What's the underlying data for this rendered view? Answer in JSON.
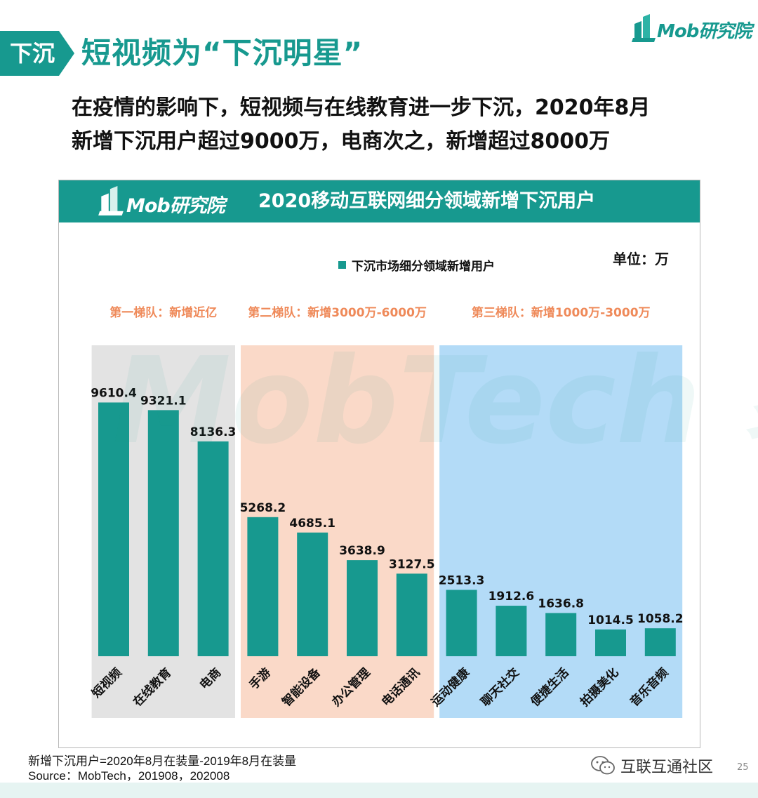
{
  "header": {
    "tag": "下沉",
    "title": "短视频为“下沉明星”",
    "brand": "Mob研究院"
  },
  "subtitle": {
    "line1": "在疫情的影响下，短视频与在线教育进一步下沉，2020年8月",
    "line2": "新增下沉用户超过9000万，电商次之，新增超过8000万"
  },
  "chart": {
    "brand": "Mob研究院",
    "title": "2020移动互联网细分领域新增下沉用户",
    "unit": "单位：万",
    "legend": "下沉市场细分领域新增用户"
  },
  "watermark": {
    "text": "MobTech 袤博"
  },
  "chart_data": {
    "type": "bar",
    "categories": [
      "短视频",
      "在线教育",
      "电商",
      "手游",
      "智能设备",
      "办公管理",
      "电话通讯",
      "运动健康",
      "聊天社交",
      "便捷生活",
      "拍摄美化",
      "音乐音频"
    ],
    "series": [
      {
        "name": "下沉市场细分领域新增用户",
        "values": [
          9610.4,
          9321.1,
          8136.3,
          5268.2,
          4685.1,
          3638.9,
          3127.5,
          2513.3,
          1912.6,
          1636.8,
          1014.5,
          1058.2
        ]
      }
    ],
    "value_labels": [
      "9610.4",
      "9321.1",
      "8136.3",
      "5268.2",
      "4685.1",
      "3638.9",
      "3127.5",
      "2513.3",
      "1912.6",
      "1636.8",
      "1014.5",
      "1058.2"
    ],
    "groups": [
      {
        "label": "第一梯队：新增近亿",
        "start": 0,
        "end": 2,
        "color": "#e3e3e3"
      },
      {
        "label": "第二梯队：新增3000万-6000万",
        "start": 3,
        "end": 6,
        "color": "#fad9c8"
      },
      {
        "label": "第三梯队：新增1000万-3000万",
        "start": 7,
        "end": 11,
        "color": "#b3dbf7"
      }
    ],
    "ylim": [
      0,
      10500
    ],
    "bar_color": "#17998f",
    "group_label_color": "#ef8a5a",
    "legend_position": "top-center",
    "grid": false
  },
  "footer": {
    "note": "新增下沉用户=2020年8月在装量-2019年8月在装量",
    "source": "Source：MobTech，201908，202008",
    "wechat": "互联互通社区",
    "page": "25"
  }
}
